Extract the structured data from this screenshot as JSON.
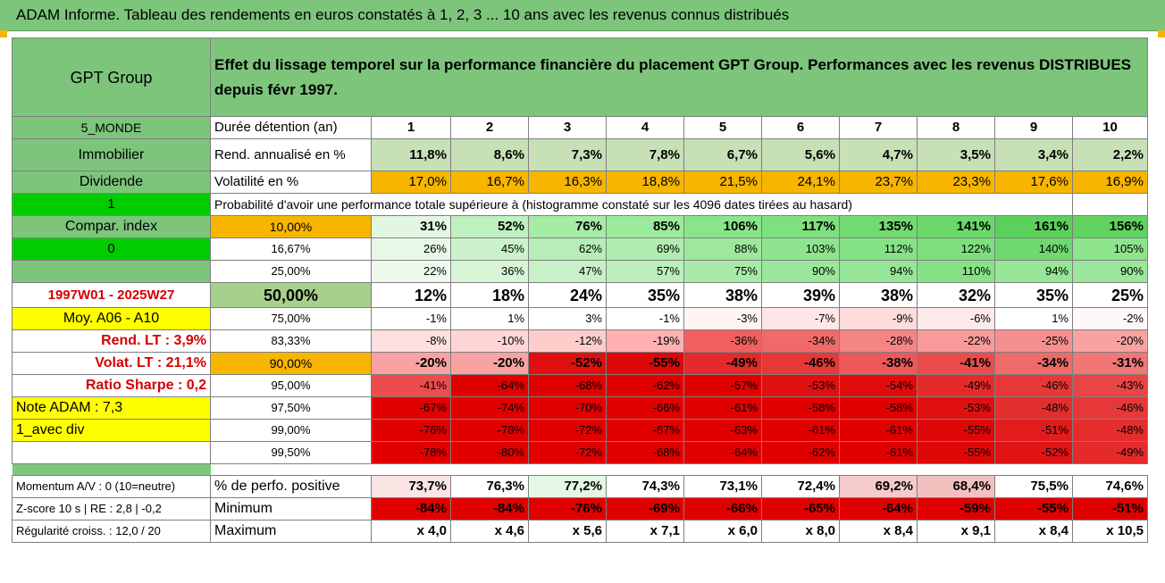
{
  "title": "ADAM Informe. Tableau des rendements en euros constatés à 1, 2, 3 ... 10 ans avec les revenus connus distribués",
  "company": "GPT Group",
  "header_text": "Effet du lissage temporel sur la performance financière du placement GPT Group. Performances avec les revenus DISTRIBUES depuis févr 1997.",
  "sidebar": {
    "region": "5_MONDE",
    "sector": "Immobilier",
    "dividend": "Dividende",
    "one": "1",
    "compar_index": "Compar. index",
    "zero": "0",
    "period": "1997W01 - 2025W27",
    "moy": "Moy. A06 - A10",
    "rend_lt": "Rend. LT :   3,9%",
    "volat_lt": "Volat. LT :   21,1%",
    "sharpe": "Ratio Sharpe :   0,2",
    "note": "Note ADAM : 7,3",
    "div": "1_avec div"
  },
  "labels": {
    "duree": "Durée détention (an)",
    "rend": "Rend. annualisé en %",
    "vol": "Volatilité en %",
    "prob": "Probabilité d'avoir une performance totale supérieure à (histogramme constaté sur les 4096 dates tirées au hasard)",
    "pos": "% de perfo. positive",
    "min": "Minimum",
    "max": "Maximum"
  },
  "bottom_left": {
    "momentum": "Momentum A/V : 0 (10=neutre)",
    "zscore": "Z-score 10 s | RE : 2,8 | -0,2",
    "regularite": "Régularité croiss. : 12,0 / 20"
  },
  "years": [
    "1",
    "2",
    "3",
    "4",
    "5",
    "6",
    "7",
    "8",
    "9",
    "10"
  ],
  "rend": [
    "11,8%",
    "8,6%",
    "7,3%",
    "7,8%",
    "6,7%",
    "5,6%",
    "4,7%",
    "3,5%",
    "3,4%",
    "2,2%"
  ],
  "vol": [
    "17,0%",
    "16,7%",
    "16,3%",
    "18,8%",
    "21,5%",
    "24,1%",
    "23,7%",
    "23,3%",
    "17,6%",
    "16,9%"
  ],
  "quantiles": [
    {
      "q": "10,00%",
      "vals": [
        "31%",
        "52%",
        "76%",
        "85%",
        "106%",
        "117%",
        "135%",
        "141%",
        "161%",
        "156%"
      ],
      "bg": [
        "#e2f7e2",
        "#bff0bf",
        "#a6eba6",
        "#9ceb9c",
        "#8ae58a",
        "#7ee07e",
        "#72da72",
        "#6ad86a",
        "#5cd05c",
        "#5fd25f"
      ]
    },
    {
      "q": "16,67%",
      "vals": [
        "26%",
        "45%",
        "62%",
        "69%",
        "88%",
        "103%",
        "112%",
        "122%",
        "140%",
        "105%"
      ],
      "bg": [
        "#e8f8e8",
        "#ccf2cc",
        "#b7eeb7",
        "#b1edb1",
        "#9ee89e",
        "#8ee48e",
        "#86e286",
        "#7edf7e",
        "#70d870",
        "#8de48d"
      ]
    },
    {
      "q": "25,00%",
      "vals": [
        "22%",
        "36%",
        "47%",
        "57%",
        "75%",
        "90%",
        "94%",
        "110%",
        "94%",
        "90%"
      ],
      "bg": [
        "#eefaee",
        "#d8f5d8",
        "#c9f1c9",
        "#bcefbc",
        "#a8eba8",
        "#9be79b",
        "#97e697",
        "#87e287",
        "#97e697",
        "#9be79b"
      ]
    },
    {
      "q": "50,00%",
      "vals": [
        "12%",
        "18%",
        "24%",
        "35%",
        "38%",
        "39%",
        "38%",
        "32%",
        "35%",
        "25%"
      ],
      "bg": [
        "#ffffff",
        "#ffffff",
        "#ffffff",
        "#ffffff",
        "#ffffff",
        "#ffffff",
        "#ffffff",
        "#ffffff",
        "#ffffff",
        "#ffffff"
      ]
    },
    {
      "q": "75,00%",
      "vals": [
        "-1%",
        "1%",
        "3%",
        "-1%",
        "-3%",
        "-7%",
        "-9%",
        "-6%",
        "1%",
        "-2%"
      ],
      "bg": [
        "#ffffff",
        "#ffffff",
        "#ffffff",
        "#ffffff",
        "#fff4f4",
        "#ffe6e6",
        "#ffdcdc",
        "#ffeaea",
        "#ffffff",
        "#fff8f8"
      ]
    },
    {
      "q": "83,33%",
      "vals": [
        "-8%",
        "-10%",
        "-12%",
        "-19%",
        "-36%",
        "-34%",
        "-28%",
        "-22%",
        "-25%",
        "-20%"
      ],
      "bg": [
        "#ffe0e0",
        "#ffd6d6",
        "#ffcccc",
        "#ffb0b0",
        "#f06060",
        "#f06a6a",
        "#f58585",
        "#f89a9a",
        "#f69090",
        "#f8a2a2"
      ]
    },
    {
      "q": "90,00%",
      "vals": [
        "-20%",
        "-20%",
        "-52%",
        "-55%",
        "-49%",
        "-46%",
        "-38%",
        "-41%",
        "-34%",
        "-31%"
      ],
      "bg": [
        "#f8a2a2",
        "#f8a2a2",
        "#e01010",
        "#de0808",
        "#e42a2a",
        "#e63838",
        "#ee5858",
        "#ec4c4c",
        "#f06a6a",
        "#f27676"
      ]
    },
    {
      "q": "95,00%",
      "vals": [
        "-41%",
        "-64%",
        "-68%",
        "-62%",
        "-57%",
        "-53%",
        "-54%",
        "-49%",
        "-46%",
        "-43%"
      ],
      "bg": [
        "#ec4c4c",
        "#e00000",
        "#e00000",
        "#e00000",
        "#e00000",
        "#e01010",
        "#e00c0c",
        "#e42a2a",
        "#e63838",
        "#ea4444"
      ]
    },
    {
      "q": "97,50%",
      "vals": [
        "-67%",
        "-74%",
        "-70%",
        "-66%",
        "-61%",
        "-58%",
        "-58%",
        "-53%",
        "-48%",
        "-46%"
      ],
      "bg": [
        "#e00000",
        "#e00000",
        "#e00000",
        "#e00000",
        "#e00000",
        "#e00000",
        "#e00000",
        "#e01010",
        "#e42e2e",
        "#e63838"
      ]
    },
    {
      "q": "99,00%",
      "vals": [
        "-76%",
        "-78%",
        "-72%",
        "-67%",
        "-63%",
        "-61%",
        "-61%",
        "-55%",
        "-51%",
        "-48%"
      ],
      "bg": [
        "#e00000",
        "#e00000",
        "#e00000",
        "#e00000",
        "#e00000",
        "#e00000",
        "#e00000",
        "#de0808",
        "#e21c1c",
        "#e42e2e"
      ]
    },
    {
      "q": "99,50%",
      "vals": [
        "-78%",
        "-80%",
        "-72%",
        "-68%",
        "-64%",
        "-62%",
        "-61%",
        "-55%",
        "-52%",
        "-49%"
      ],
      "bg": [
        "#e00000",
        "#e00000",
        "#e00000",
        "#e00000",
        "#e00000",
        "#e00000",
        "#e00000",
        "#de0808",
        "#e01414",
        "#e42a2a"
      ]
    }
  ],
  "pos": [
    "73,7%",
    "76,3%",
    "77,2%",
    "74,3%",
    "73,1%",
    "72,4%",
    "69,2%",
    "68,4%",
    "75,5%",
    "74,6%"
  ],
  "pos_bg": [
    "#fbe4e4",
    "#ffffff",
    "#e4f7e4",
    "#ffffff",
    "#ffffff",
    "#ffffff",
    "#f5caca",
    "#f3c0c0",
    "#ffffff",
    "#ffffff"
  ],
  "min": [
    "-84%",
    "-84%",
    "-76%",
    "-69%",
    "-66%",
    "-65%",
    "-64%",
    "-59%",
    "-55%",
    "-51%"
  ],
  "max": [
    "x 4,0",
    "x 4,6",
    "x 5,6",
    "x 7,1",
    "x 6,0",
    "x 8,0",
    "x 8,4",
    "x 9,1",
    "x 8,4",
    "x 10,5"
  ]
}
